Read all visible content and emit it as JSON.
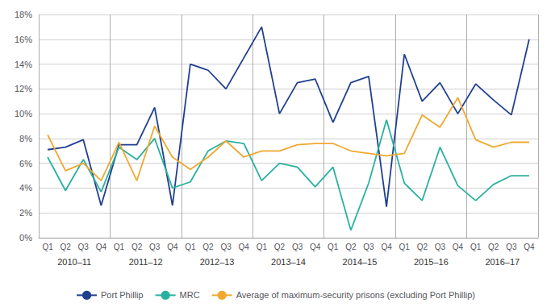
{
  "chart_data": {
    "type": "line",
    "categories": [
      "Q1",
      "Q2",
      "Q3",
      "Q4",
      "Q1",
      "Q2",
      "Q3",
      "Q4",
      "Q1",
      "Q2",
      "Q3",
      "Q4",
      "Q1",
      "Q2",
      "Q3",
      "Q4",
      "Q1",
      "Q2",
      "Q3",
      "Q4",
      "Q1",
      "Q2",
      "Q3",
      "Q4",
      "Q1",
      "Q2",
      "Q3",
      "Q4"
    ],
    "annotations": [
      "2010–11",
      "2011–12",
      "2012–13",
      "2013–14",
      "2014–15",
      "2015–16",
      "2016–17"
    ],
    "series": [
      {
        "name": "Port Phillip",
        "color": "#1f3f8f",
        "values": [
          0.071,
          0.073,
          0.079,
          0.026,
          0.075,
          0.075,
          0.105,
          0.026,
          0.14,
          0.135,
          0.12,
          0.145,
          0.17,
          0.1,
          0.125,
          0.128,
          0.093,
          0.125,
          0.13,
          0.025,
          0.148,
          0.11,
          0.125,
          0.1,
          0.124,
          0.111,
          0.099,
          0.16
        ]
      },
      {
        "name": "MRC",
        "color": "#2ab0a0",
        "values": [
          0.065,
          0.038,
          0.063,
          0.037,
          0.073,
          0.063,
          0.08,
          0.04,
          0.045,
          0.07,
          0.078,
          0.076,
          0.046,
          0.06,
          0.057,
          0.041,
          0.057,
          0.006,
          0.044,
          0.095,
          0.044,
          0.03,
          0.073,
          0.042,
          0.03,
          0.043,
          0.05,
          0.05
        ]
      },
      {
        "name": "Average of maximum-security prisons (excluding Port Phillip)",
        "color": "#f0a830",
        "values": [
          0.083,
          0.054,
          0.06,
          0.046,
          0.077,
          0.046,
          0.09,
          0.065,
          0.055,
          0.065,
          0.078,
          0.065,
          0.07,
          0.07,
          0.075,
          0.076,
          0.076,
          0.07,
          0.068,
          0.066,
          0.068,
          0.099,
          0.089,
          0.113,
          0.079,
          0.073,
          0.077,
          0.077
        ]
      }
    ],
    "ylim": [
      0,
      0.18
    ],
    "yticks": [
      {
        "value": 0,
        "label": "0%"
      },
      {
        "value": 0.02,
        "label": "2%"
      },
      {
        "value": 0.04,
        "label": "4%"
      },
      {
        "value": 0.06,
        "label": "6%"
      },
      {
        "value": 0.08,
        "label": "8%"
      },
      {
        "value": 0.1,
        "label": "10%"
      },
      {
        "value": 0.12,
        "label": "12%"
      },
      {
        "value": 0.14,
        "label": "14%"
      },
      {
        "value": 0.16,
        "label": "16%"
      },
      {
        "value": 0.18,
        "label": "18%"
      }
    ],
    "grid": true,
    "legend": "bottom"
  }
}
